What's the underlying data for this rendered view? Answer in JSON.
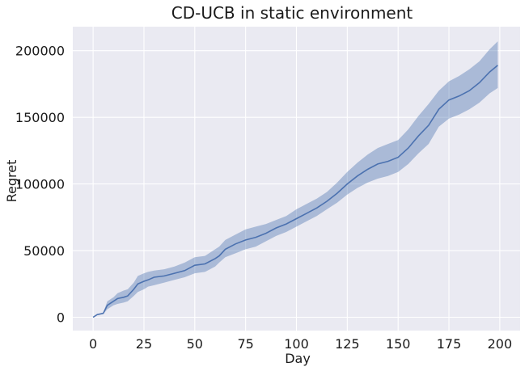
{
  "chart_data": {
    "type": "area",
    "title": "CD-UCB in static environment",
    "xlabel": "Day",
    "ylabel": "Regret",
    "xlim": [
      -10,
      210
    ],
    "ylim": [
      -10000,
      218000
    ],
    "xticks": [
      0,
      25,
      50,
      75,
      100,
      125,
      150,
      175,
      200
    ],
    "yticks": [
      0,
      50000,
      100000,
      150000,
      200000
    ],
    "grid": true,
    "background_color": "#eaeaf2",
    "line_color": "#4c72b0",
    "band_color": "#4c72b0",
    "series": [
      {
        "x": [
          0,
          2,
          5,
          7,
          10,
          12,
          15,
          17,
          20,
          22,
          25,
          27,
          30,
          35,
          40,
          45,
          50,
          55,
          60,
          62,
          65,
          70,
          75,
          80,
          85,
          90,
          95,
          100,
          105,
          110,
          115,
          120,
          125,
          130,
          135,
          140,
          145,
          150,
          155,
          160,
          165,
          170,
          175,
          180,
          185,
          190,
          195,
          199
        ],
        "mean": [
          0,
          2000,
          3000,
          9000,
          12000,
          14000,
          15000,
          16000,
          21000,
          25000,
          27000,
          28000,
          30000,
          31000,
          33000,
          35000,
          39000,
          40000,
          44000,
          46000,
          51000,
          55000,
          58000,
          60000,
          63000,
          67000,
          70000,
          74000,
          78000,
          82000,
          87000,
          93000,
          100000,
          106000,
          111000,
          115000,
          117000,
          120000,
          127000,
          136000,
          144000,
          156000,
          163000,
          166000,
          170000,
          176000,
          184000,
          189000
        ],
        "lower": [
          0,
          1500,
          2500,
          6000,
          9000,
          10000,
          11000,
          12000,
          16000,
          19000,
          21000,
          23000,
          24000,
          26000,
          28000,
          30000,
          33000,
          34000,
          38000,
          41000,
          45000,
          48000,
          51000,
          53000,
          57000,
          61000,
          64000,
          68000,
          72000,
          76000,
          81000,
          86000,
          92000,
          97000,
          101000,
          104000,
          106000,
          109000,
          115000,
          123000,
          130000,
          143000,
          149000,
          152000,
          156000,
          161000,
          168000,
          172000
        ],
        "upper": [
          0,
          2500,
          3500,
          12000,
          15000,
          18000,
          20000,
          21000,
          26000,
          31000,
          33000,
          34000,
          35000,
          36000,
          38000,
          41000,
          45000,
          46000,
          51000,
          53000,
          58000,
          62000,
          66000,
          68000,
          70000,
          73000,
          76000,
          81000,
          85000,
          89000,
          94000,
          101000,
          109000,
          116000,
          122000,
          127000,
          130000,
          133000,
          141000,
          151000,
          160000,
          170000,
          177000,
          181000,
          186000,
          192000,
          201000,
          207000
        ]
      }
    ]
  }
}
